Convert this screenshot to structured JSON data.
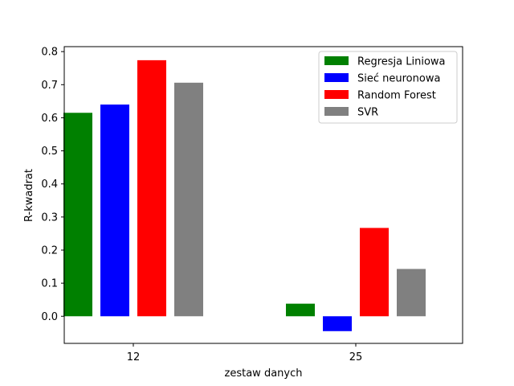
{
  "chart_data": {
    "type": "bar",
    "title": "",
    "xlabel": "zestaw danych",
    "ylabel": "R-kwadrat",
    "categories": [
      "12",
      "25"
    ],
    "ylim": [
      -0.082,
      0.815
    ],
    "yticks": [
      "0.0",
      "0.1",
      "0.2",
      "0.3",
      "0.4",
      "0.5",
      "0.6",
      "0.7",
      "0.8"
    ],
    "grid": false,
    "legend_position": "top-right",
    "series": [
      {
        "name": "Regresja Liniowa",
        "color": "#008000",
        "values": [
          0.615,
          0.038
        ]
      },
      {
        "name": "Sieć neuronowa",
        "color": "#0000ff",
        "values": [
          0.64,
          -0.045
        ]
      },
      {
        "name": "Random Forest",
        "color": "#ff0000",
        "values": [
          0.774,
          0.267
        ]
      },
      {
        "name": "SVR",
        "color": "#808080",
        "values": [
          0.706,
          0.143
        ]
      }
    ]
  }
}
